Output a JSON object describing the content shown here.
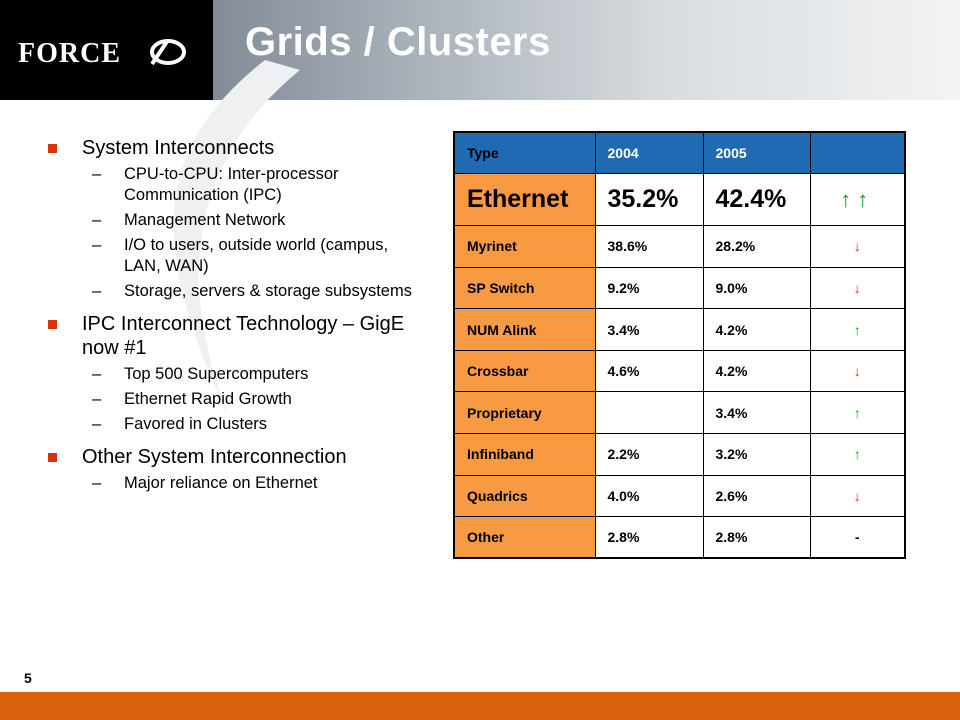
{
  "header": {
    "title": "Grids / Clusters",
    "logo_text": "FORCE10"
  },
  "bullets": [
    {
      "text": "System Interconnects",
      "sub": [
        "CPU-to-CPU: Inter-processor Communication (IPC)",
        "Management Network",
        "I/O to users, outside world (campus, LAN, WAN)",
        "Storage, servers & storage subsystems"
      ]
    },
    {
      "text": "IPC Interconnect Technology – GigE now #1",
      "sub": [
        "Top 500 Supercomputers",
        "Ethernet Rapid Growth",
        "Favored in Clusters"
      ]
    },
    {
      "text": "Other System Interconnection",
      "sub": [
        "Major reliance on Ethernet"
      ]
    }
  ],
  "table": {
    "headers": [
      "Type",
      "2004",
      "2005",
      ""
    ],
    "rows": [
      {
        "name": "Ethernet",
        "y2004": "35.2%",
        "y2005": "42.4%",
        "trend": "up-up"
      },
      {
        "name": "Myrinet",
        "y2004": "38.6%",
        "y2005": "28.2%",
        "trend": "down"
      },
      {
        "name": "SP Switch",
        "y2004": "9.2%",
        "y2005": "9.0%",
        "trend": "down"
      },
      {
        "name": "NUM Alink",
        "y2004": "3.4%",
        "y2005": "4.2%",
        "trend": "up"
      },
      {
        "name": "Crossbar",
        "y2004": "4.6%",
        "y2005": "4.2%",
        "trend": "down"
      },
      {
        "name": "Proprietary",
        "y2004": "",
        "y2005": "3.4%",
        "trend": "up"
      },
      {
        "name": "Infiniband",
        "y2004": "2.2%",
        "y2005": "3.2%",
        "trend": "up"
      },
      {
        "name": "Quadrics",
        "y2004": "4.0%",
        "y2005": "2.6%",
        "trend": "down"
      },
      {
        "name": "Other",
        "y2004": "2.8%",
        "y2005": "2.8%",
        "trend": "flat"
      }
    ]
  },
  "symbols": {
    "up": "↑",
    "down": "↓",
    "flat": "-"
  },
  "page_number": "5",
  "colors": {
    "header_blue": "#1f6ab3",
    "row_orange": "#f79a42",
    "footer_orange": "#d9620e",
    "bullet_red": "#d9320e",
    "up_green": "#1a9a1a",
    "down_red": "#d9320e"
  }
}
